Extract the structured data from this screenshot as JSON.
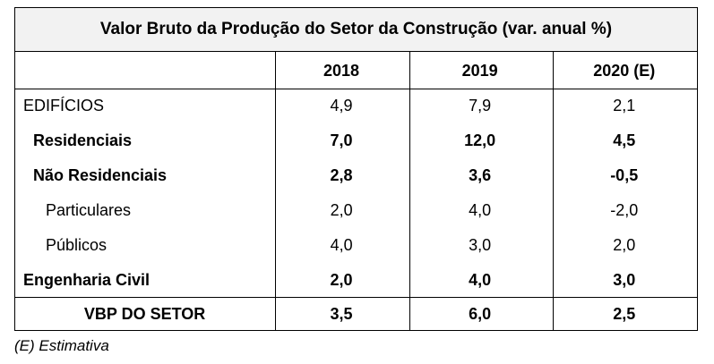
{
  "table": {
    "title": "Valor Bruto da Produção do Setor da Construção (var. anual %)",
    "headers": [
      "2018",
      "2019",
      "2020 (E)"
    ],
    "rows": [
      {
        "label": "EDIFÍCIOS",
        "values": [
          "4,9",
          "7,9",
          "2,1"
        ]
      },
      {
        "label": "Residenciais",
        "values": [
          "7,0",
          "12,0",
          "4,5"
        ]
      },
      {
        "label": "Não Residenciais",
        "values": [
          "2,8",
          "3,6",
          "-0,5"
        ]
      },
      {
        "label": "Particulares",
        "values": [
          "2,0",
          "4,0",
          "-2,0"
        ]
      },
      {
        "label": "Públicos",
        "values": [
          "4,0",
          "3,0",
          "2,0"
        ]
      },
      {
        "label": "Engenharia Civil",
        "values": [
          "2,0",
          "4,0",
          "3,0"
        ]
      }
    ],
    "total": {
      "label": "VBP DO SETOR",
      "values": [
        "3,5",
        "6,0",
        "2,5"
      ]
    }
  },
  "footnote": "(E) Estimativa"
}
